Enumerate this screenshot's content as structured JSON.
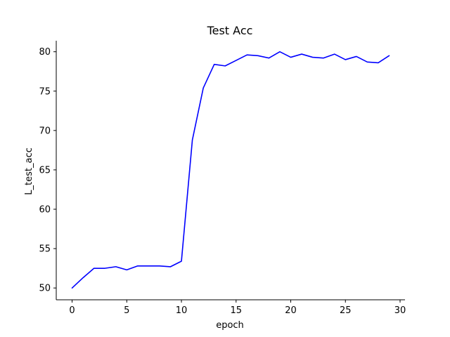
{
  "chart_data": {
    "type": "line",
    "title": "Test Acc",
    "xlabel": "epoch",
    "ylabel": "L_test_acc",
    "xlim": [
      -1.45,
      30.45
    ],
    "ylim": [
      48.5,
      81.4
    ],
    "xticks": [
      0,
      5,
      10,
      15,
      20,
      25,
      30
    ],
    "yticks": [
      50,
      55,
      60,
      65,
      70,
      75,
      80
    ],
    "grid": false,
    "legend": "none",
    "spines": [
      "left",
      "bottom"
    ],
    "series": [
      {
        "color": "#0000ff",
        "x": [
          0,
          1,
          2,
          3,
          4,
          5,
          6,
          7,
          8,
          9,
          10,
          11,
          12,
          13,
          14,
          15,
          16,
          17,
          18,
          19,
          20,
          21,
          22,
          23,
          24,
          25,
          26,
          27,
          28,
          29
        ],
        "y": [
          50.0,
          51.3,
          52.5,
          52.5,
          52.7,
          52.3,
          52.8,
          52.8,
          52.8,
          52.7,
          53.4,
          68.8,
          75.4,
          78.4,
          78.2,
          78.9,
          79.6,
          79.5,
          79.2,
          80.0,
          79.3,
          79.7,
          79.3,
          79.2,
          79.7,
          79.0,
          79.4,
          78.7,
          78.6,
          79.5
        ]
      }
    ]
  }
}
